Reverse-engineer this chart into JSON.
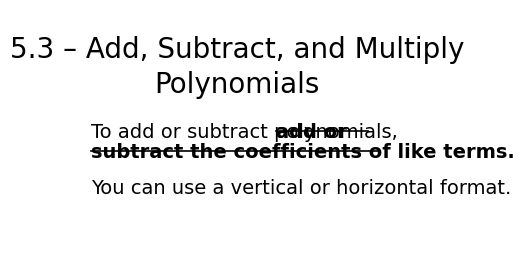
{
  "title_line1": "5.3 – Add, Subtract, and Multiply",
  "title_line2": "Polynomials",
  "title_fontsize": 20,
  "title_color": "#000000",
  "background_color": "#ffffff",
  "body_normal": "To add or subtract polynomials, ",
  "body_bold1": "add or",
  "body_bold2": "subtract the coefficients of like terms.",
  "body2_text": "You can use a vertical or horizontal format.",
  "body_fontsize": 14,
  "body2_fontsize": 14
}
